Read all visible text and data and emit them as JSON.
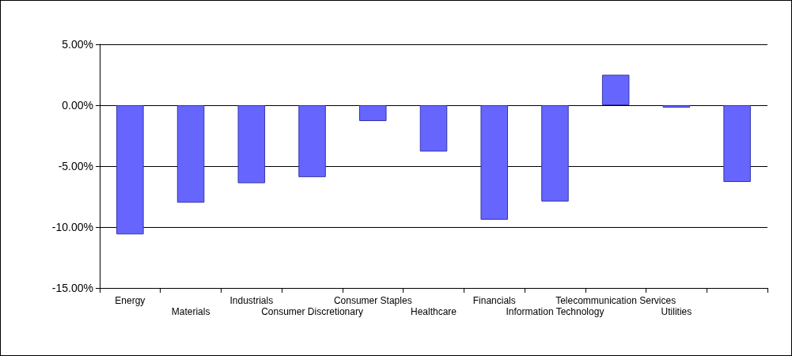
{
  "chart_data": {
    "type": "bar",
    "categories": [
      "Energy",
      "Materials",
      "Industrials",
      "Consumer Discretionary",
      "Consumer Staples",
      "Healthcare",
      "Financials",
      "Information Technology",
      "Telecommunication Services",
      "Utilities",
      null
    ],
    "values": [
      -10.6,
      -8.0,
      -6.4,
      -5.9,
      -1.3,
      -3.8,
      -9.4,
      -7.9,
      2.5,
      -0.2,
      -6.3
    ],
    "color": "#6666ff",
    "ylim": [
      -15,
      5
    ],
    "yticks": [
      {
        "value": 5,
        "label": "5.00%"
      },
      {
        "value": 0,
        "label": "0.00%"
      },
      {
        "value": -5,
        "label": "-5.00%"
      },
      {
        "value": -10,
        "label": "-10.00%"
      },
      {
        "value": -15,
        "label": "-15.00%"
      }
    ],
    "grid": "y"
  }
}
